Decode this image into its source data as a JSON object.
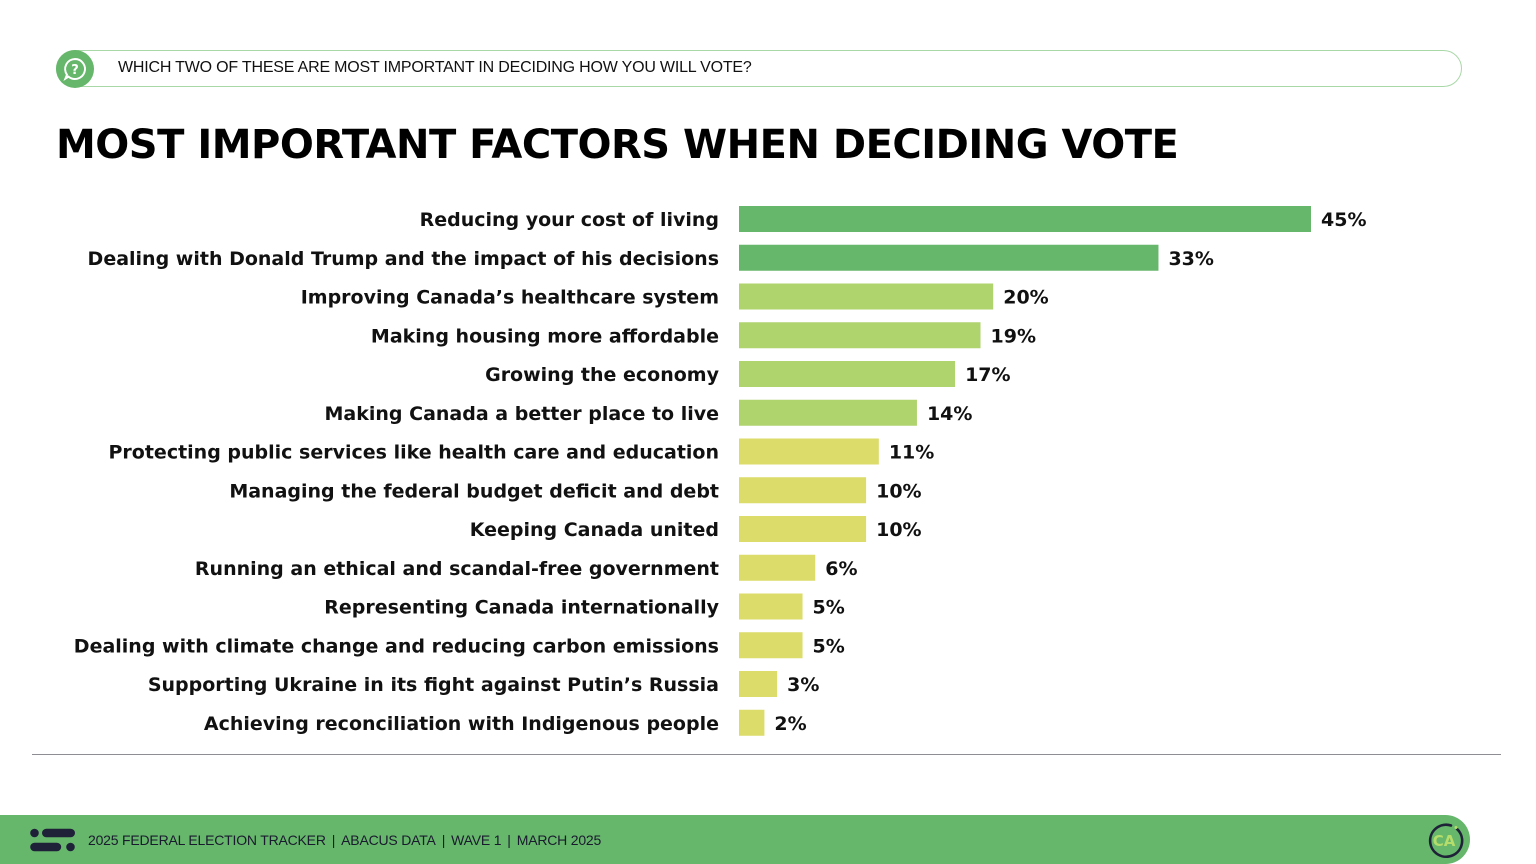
{
  "question": {
    "icon": "question-bubble-icon",
    "text": "WHICH TWO OF THESE ARE MOST IMPORTANT IN DECIDING HOW YOU WILL VOTE?"
  },
  "header": {
    "title": "MOST IMPORTANT FACTORS WHEN DECIDING VOTE"
  },
  "colors": {
    "brand_green": "#66b66b",
    "tier1": "#66b66b",
    "tier2": "#afd46e",
    "tier3": "#dcdc6a",
    "outline": "#a9d8a7",
    "footer_ink": "#1a1a2e"
  },
  "chart_data": {
    "type": "bar",
    "orientation": "horizontal",
    "title": "MOST IMPORTANT FACTORS WHEN DECIDING VOTE",
    "xlabel": "",
    "ylabel": "",
    "unit": "%",
    "xlim": [
      0,
      45
    ],
    "grid": false,
    "legend": "none",
    "categories": [
      "Reducing your cost of living",
      "Dealing with Donald Trump and the impact of his decisions",
      "Improving Canada’s healthcare system",
      "Making housing more affordable",
      "Growing the economy",
      "Making Canada a better place to live",
      "Protecting public services like health care and education",
      "Managing the federal budget deficit and debt",
      "Keeping Canada united",
      "Running an ethical and scandal-free government",
      "Representing Canada internationally",
      "Dealing with climate change and reducing carbon emissions",
      "Supporting Ukraine in its fight against Putin’s Russia",
      "Achieving reconciliation with Indigenous people"
    ],
    "values": [
      45,
      33,
      20,
      19,
      17,
      14,
      11,
      10,
      10,
      6,
      5,
      5,
      3,
      2
    ],
    "value_labels": [
      "45%",
      "33%",
      "20%",
      "19%",
      "17%",
      "14%",
      "11%",
      "10%",
      "10%",
      "6%",
      "5%",
      "5%",
      "3%",
      "2%"
    ],
    "color_tiers": [
      1,
      1,
      2,
      2,
      2,
      2,
      3,
      3,
      3,
      3,
      3,
      3,
      3,
      3
    ]
  },
  "footer": {
    "logo": "abacus-data-logo-icon",
    "items": [
      "2025 FEDERAL ELECTION TRACKER",
      "ABACUS DATA",
      "WAVE 1",
      "MARCH 2025"
    ],
    "separator": "|",
    "badge_text": "CA",
    "badge_icon": "ca-badge-icon"
  }
}
